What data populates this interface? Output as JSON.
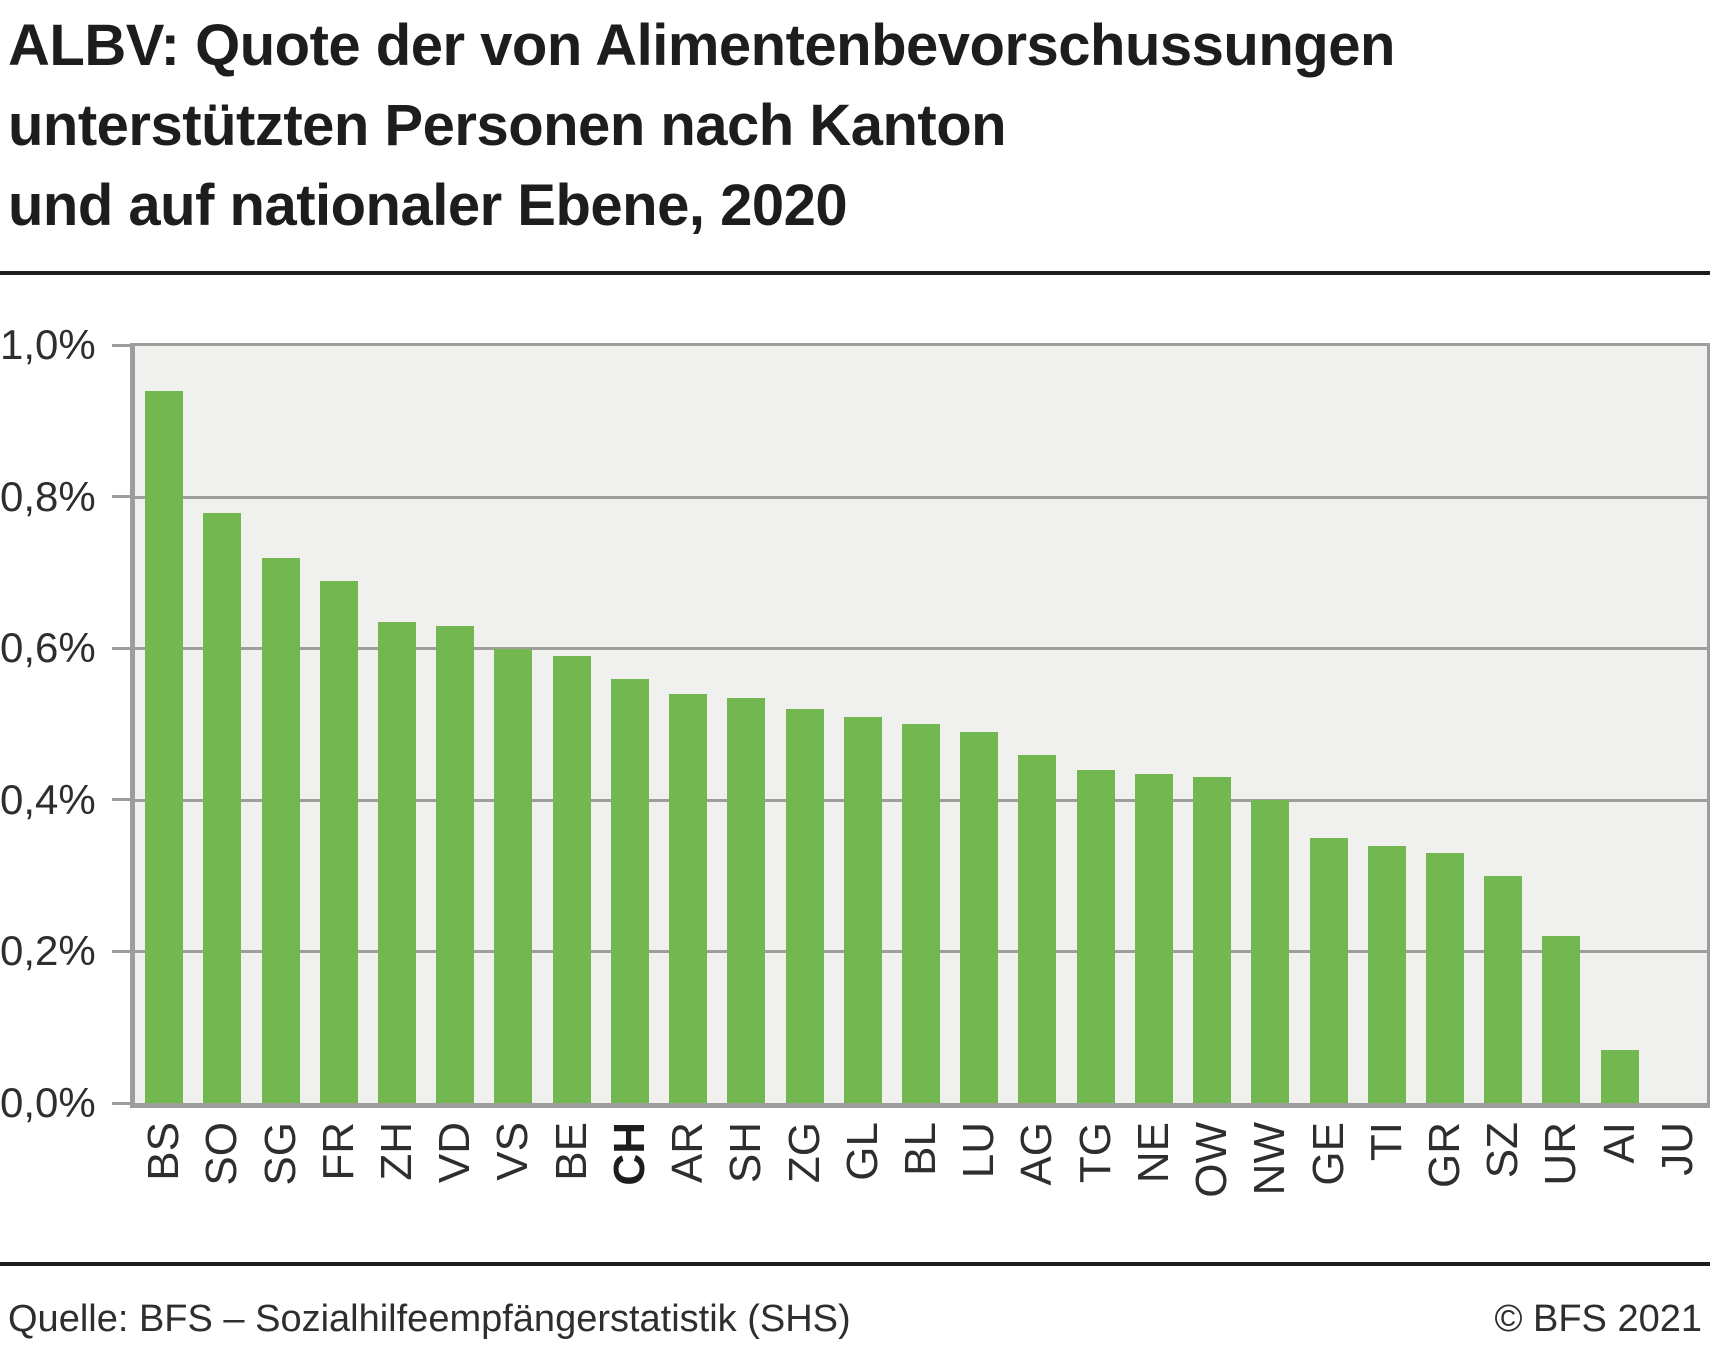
{
  "page": {
    "title_lines": [
      "ALBV: Quote der von Alimentenbevorschussungen",
      "unterstützten Personen nach Kanton",
      "und auf nationaler Ebene, 2020"
    ]
  },
  "chart_data": {
    "type": "bar",
    "title": "ALBV: Quote der von Alimentenbevorschussungen unterstützten Personen nach Kanton und auf nationaler Ebene, 2020",
    "categories": [
      "BS",
      "SO",
      "SG",
      "FR",
      "ZH",
      "VD",
      "VS",
      "BE",
      "CH",
      "AR",
      "SH",
      "ZG",
      "GL",
      "BL",
      "LU",
      "AG",
      "TG",
      "NE",
      "OW",
      "NW",
      "GE",
      "TI",
      "GR",
      "SZ",
      "UR",
      "AI",
      "JU"
    ],
    "values": [
      0.94,
      0.78,
      0.72,
      0.69,
      0.635,
      0.63,
      0.6,
      0.59,
      0.56,
      0.54,
      0.535,
      0.52,
      0.51,
      0.5,
      0.49,
      0.46,
      0.44,
      0.435,
      0.43,
      0.4,
      0.35,
      0.34,
      0.33,
      0.3,
      0.22,
      0.07,
      0
    ],
    "unit": "%",
    "highlighted_category": "CH",
    "xlabel": "",
    "ylabel": "",
    "y_ticks": [
      "1,0%",
      "0,8%",
      "0,6%",
      "0,4%",
      "0,2%",
      "0,0%"
    ],
    "ylim": [
      0,
      1.0
    ],
    "grid": true,
    "legend_position": "none",
    "colors": {
      "bar": "#72b750",
      "plot_background": "#f0f0ef",
      "grid": "#9d9d9c",
      "axis_text": "#2e2e2d",
      "title_text": "#1d1d1b"
    }
  },
  "footer": {
    "source": "Quelle: BFS – Sozialhilfeempfängerstatistik (SHS)",
    "copyright": "© BFS 2021"
  }
}
